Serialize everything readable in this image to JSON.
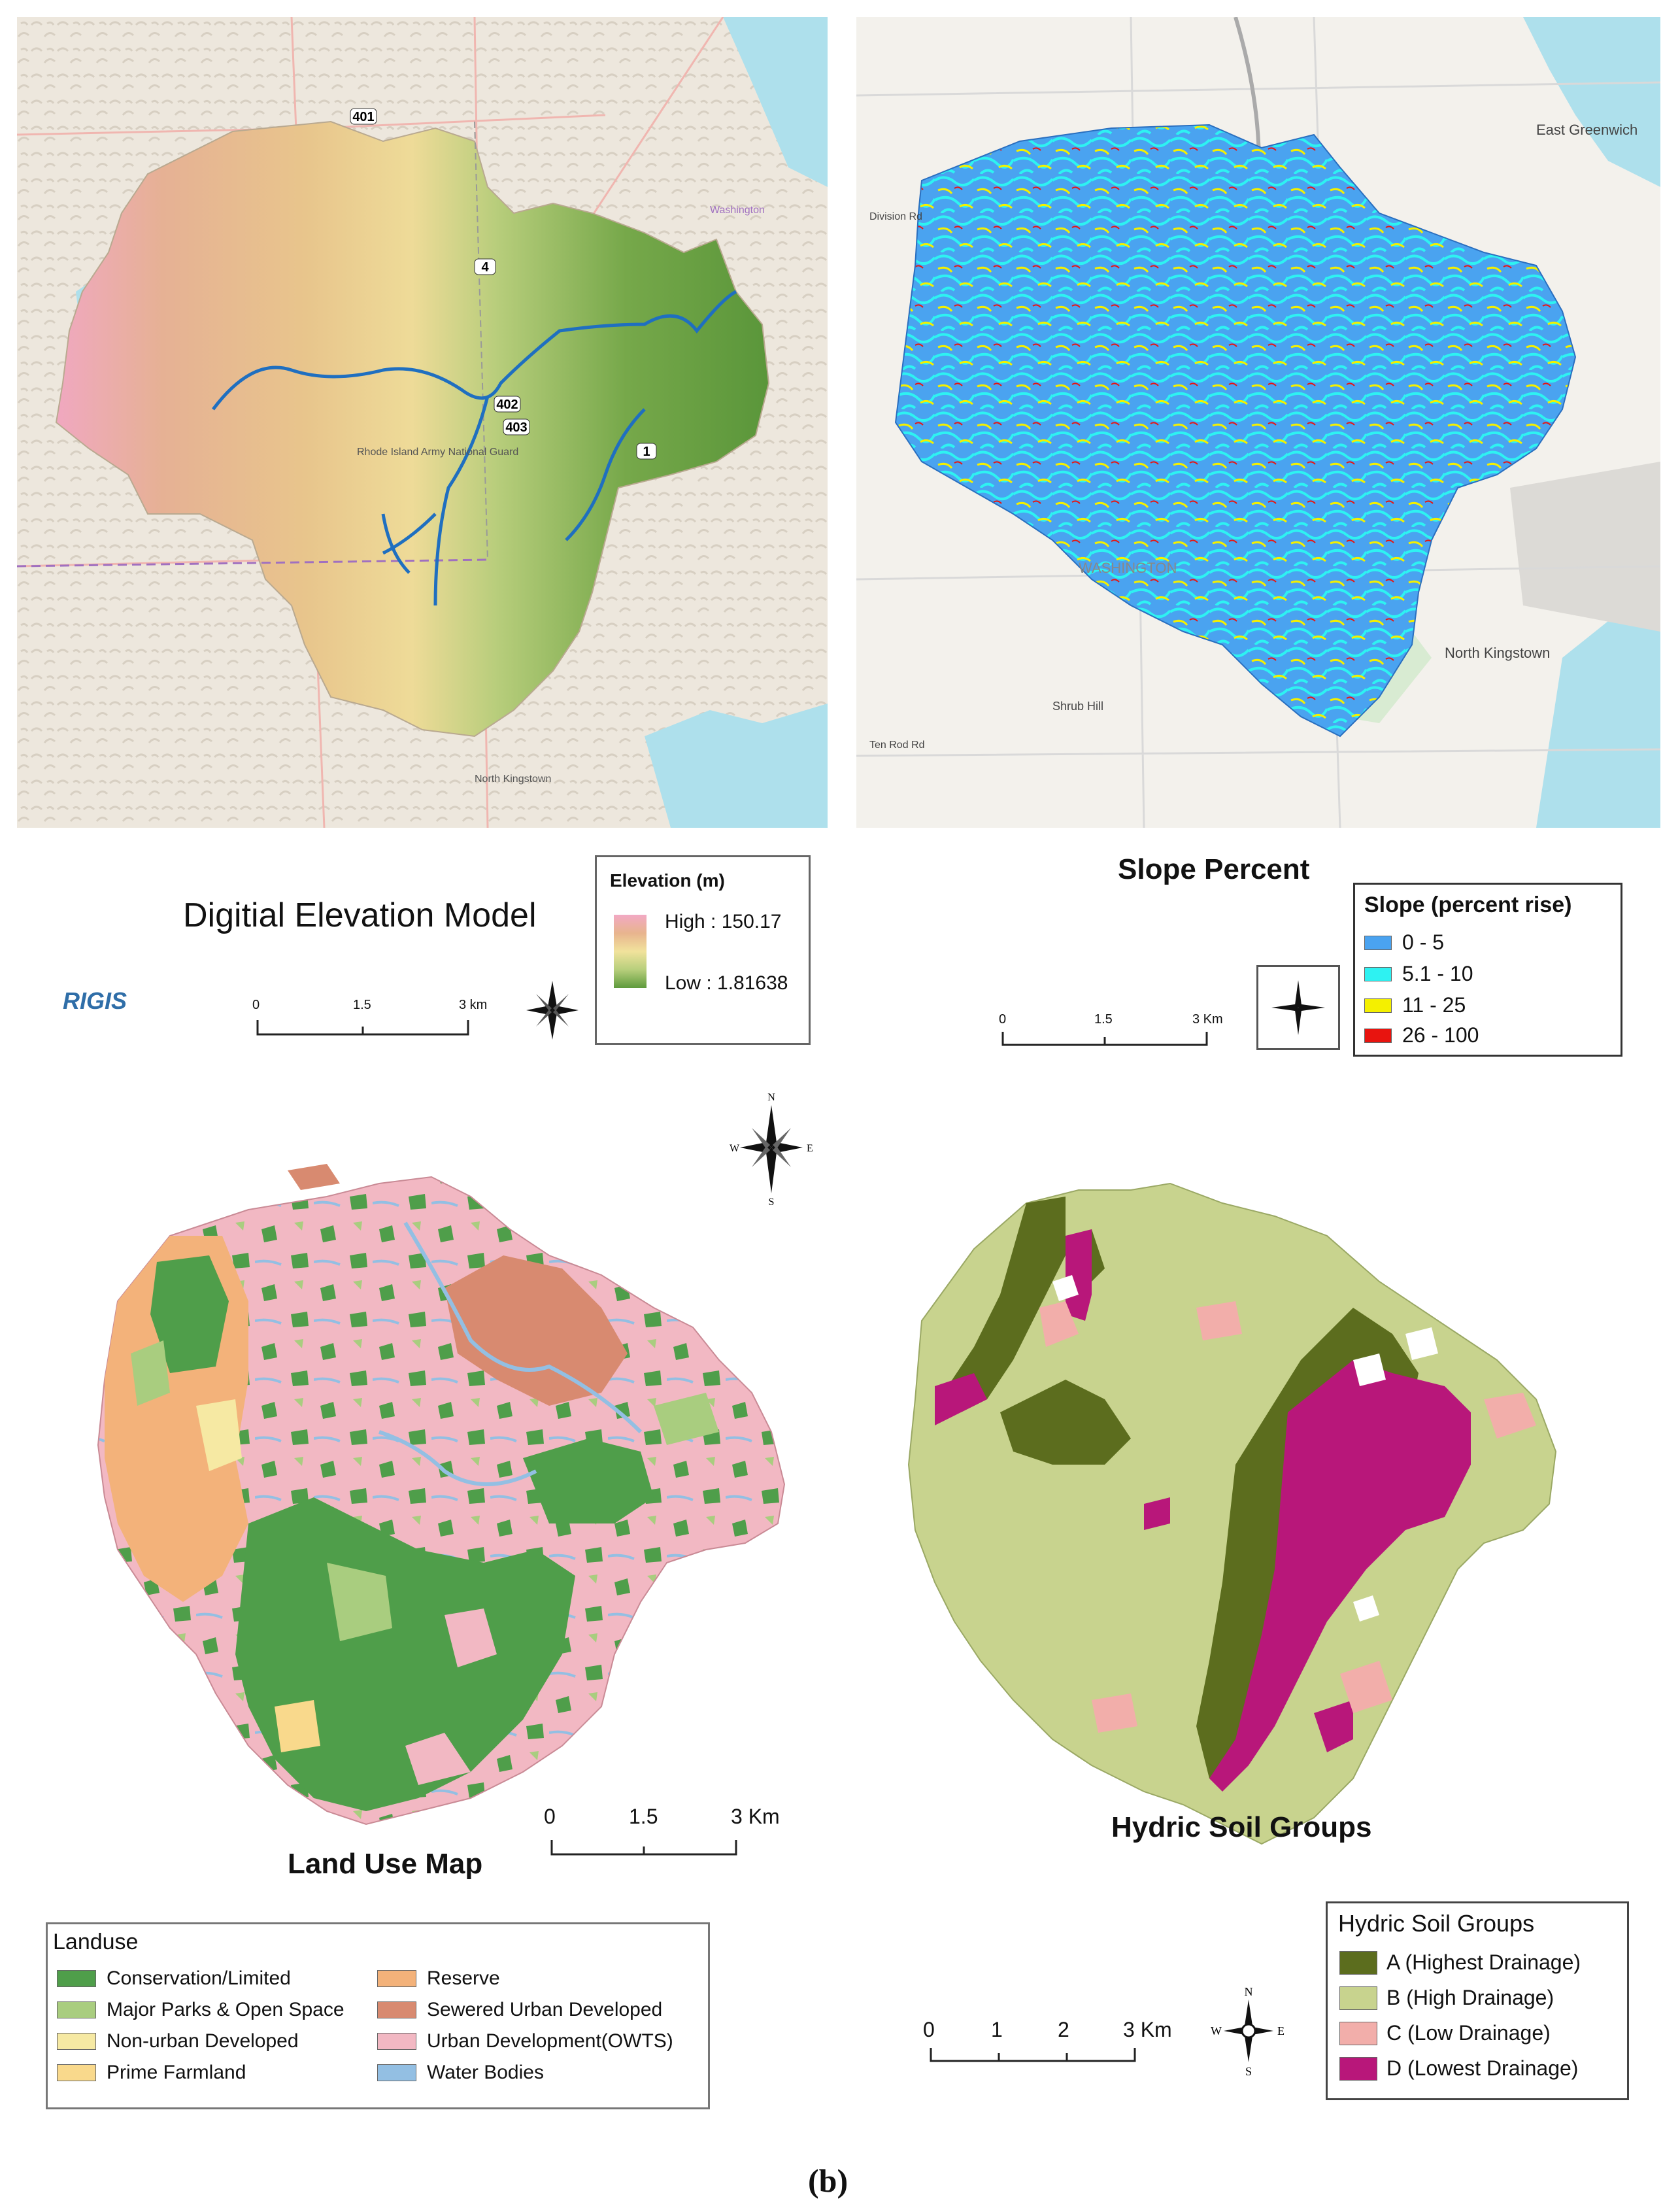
{
  "panels": {
    "dem": {
      "title": "Digitial Elevation Model",
      "logo": "RIGIS",
      "legend": {
        "title": "Elevation (m)",
        "high_label": "High : 150.17",
        "low_label": "Low : 1.81638",
        "ramp_colors": [
          "#f2a9c4",
          "#e8b48e",
          "#f1e29c",
          "#b7cf7c",
          "#5e9a3c"
        ]
      },
      "scale": {
        "ticks": [
          "0",
          "1.5",
          "3 km"
        ]
      },
      "map_labels": [
        "401",
        "4",
        "402",
        "403",
        "1",
        "Rhode Island Army National Guard",
        "North Kingstown",
        "Washington"
      ],
      "colors": {
        "river": "#1f6fc0",
        "basemap": "#ece6dd",
        "water": "#aee0ec"
      }
    },
    "slope": {
      "title": "Slope Percent",
      "legend": {
        "title": "Slope (percent rise)",
        "items": [
          {
            "label": "0 - 5",
            "color": "#4aa3f0"
          },
          {
            "label": "5.1 - 10",
            "color": "#2ef2f2"
          },
          {
            "label": "11 - 25",
            "color": "#f4f000"
          },
          {
            "label": "26 - 100",
            "color": "#e8140f"
          }
        ]
      },
      "scale": {
        "ticks": [
          "0",
          "1.5",
          "3 Km"
        ]
      },
      "map_labels": [
        "East Greenwich",
        "WASHINGTON",
        "North Kingstown",
        "Shrub Hill",
        "Division Rd",
        "Ten Rod Rd"
      ],
      "colors": {
        "basemap": "#f3f1ec",
        "water": "#aee0ec"
      }
    },
    "landuse": {
      "title": "Land Use Map",
      "legend": {
        "title": "Landuse",
        "items": [
          {
            "label": "Conservation/Limited",
            "color": "#4f9e4a"
          },
          {
            "label": "Major Parks & Open Space",
            "color": "#a9cd7f"
          },
          {
            "label": "Non-urban Developed",
            "color": "#f6e9a3"
          },
          {
            "label": "Prime Farmland",
            "color": "#f9d98c"
          },
          {
            "label": "Reserve",
            "color": "#f3b27a"
          },
          {
            "label": "Sewered Urban Developed",
            "color": "#d88a70"
          },
          {
            "label": "Urban Development(OWTS)",
            "color": "#f2b8c3"
          },
          {
            "label": "Water Bodies",
            "color": "#93bfe3"
          }
        ]
      },
      "scale": {
        "ticks": [
          "0",
          "1.5",
          "3 Km"
        ]
      }
    },
    "soil": {
      "title": "Hydric Soil Groups",
      "legend": {
        "title": "Hydric Soil Groups",
        "items": [
          {
            "label": "A (Highest Drainage)",
            "color": "#5c6d1e"
          },
          {
            "label": "B (High Drainage)",
            "color": "#c8d38e"
          },
          {
            "label": "C (Low Drainage)",
            "color": "#f2aeaa"
          },
          {
            "label": "D (Lowest Drainage)",
            "color": "#b8177a"
          }
        ]
      },
      "scale": {
        "ticks": [
          "0",
          "1",
          "2",
          "3 Km"
        ]
      }
    }
  },
  "compass": {
    "n": "N",
    "s": "S",
    "e": "E",
    "w": "W"
  },
  "caption": "(b)"
}
